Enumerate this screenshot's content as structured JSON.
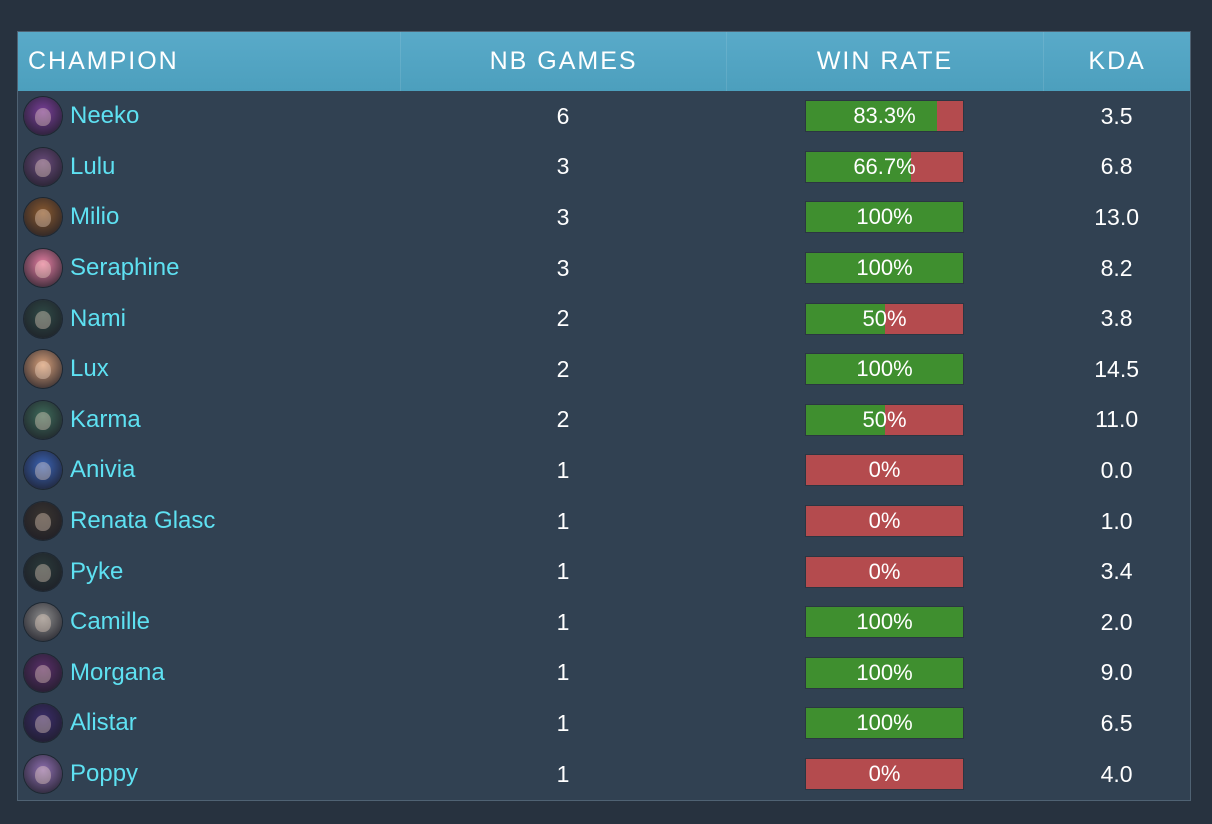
{
  "colors": {
    "background": "#27323f",
    "panel": "#314152",
    "header": "#54a5c4",
    "champion_link": "#5ee1f2",
    "win": "#3f8f2f",
    "loss": "#b44b4e"
  },
  "table": {
    "headers": {
      "champion": "CHAMPION",
      "games": "NB GAMES",
      "win_rate": "WIN RATE",
      "kda": "KDA"
    },
    "rows": [
      {
        "champion": "Neeko",
        "games": "6",
        "win_rate": "83.3%",
        "win_fraction": 0.833,
        "kda": "3.5",
        "icon": "neeko-portrait-icon",
        "avatar_color": "#7a3f9a"
      },
      {
        "champion": "Lulu",
        "games": "3",
        "win_rate": "66.7%",
        "win_fraction": 0.667,
        "kda": "6.8",
        "icon": "lulu-portrait-icon",
        "avatar_color": "#6a4b7c"
      },
      {
        "champion": "Milio",
        "games": "3",
        "win_rate": "100%",
        "win_fraction": 1.0,
        "kda": "13.0",
        "icon": "milio-portrait-icon",
        "avatar_color": "#8a5a30"
      },
      {
        "champion": "Seraphine",
        "games": "3",
        "win_rate": "100%",
        "win_fraction": 1.0,
        "kda": "8.2",
        "icon": "seraphine-portrait-icon",
        "avatar_color": "#e67fa3"
      },
      {
        "champion": "Nami",
        "games": "2",
        "win_rate": "50%",
        "win_fraction": 0.5,
        "kda": "3.8",
        "icon": "nami-portrait-icon",
        "avatar_color": "#2f4a46"
      },
      {
        "champion": "Lux",
        "games": "2",
        "win_rate": "100%",
        "win_fraction": 1.0,
        "kda": "14.5",
        "icon": "lux-portrait-icon",
        "avatar_color": "#d7a07a"
      },
      {
        "champion": "Karma",
        "games": "2",
        "win_rate": "50%",
        "win_fraction": 0.5,
        "kda": "11.0",
        "icon": "karma-portrait-icon",
        "avatar_color": "#3e6b5a"
      },
      {
        "champion": "Anivia",
        "games": "1",
        "win_rate": "0%",
        "win_fraction": 0.0,
        "kda": "0.0",
        "icon": "anivia-portrait-icon",
        "avatar_color": "#3a63b5"
      },
      {
        "champion": "Renata Glasc",
        "games": "1",
        "win_rate": "0%",
        "win_fraction": 0.0,
        "kda": "1.0",
        "icon": "renata-glasc-portrait-icon",
        "avatar_color": "#3a3530"
      },
      {
        "champion": "Pyke",
        "games": "1",
        "win_rate": "0%",
        "win_fraction": 0.0,
        "kda": "3.4",
        "icon": "pyke-portrait-icon",
        "avatar_color": "#2a3a3a"
      },
      {
        "champion": "Camille",
        "games": "1",
        "win_rate": "100%",
        "win_fraction": 1.0,
        "kda": "2.0",
        "icon": "camille-portrait-icon",
        "avatar_color": "#8c8c8c"
      },
      {
        "champion": "Morgana",
        "games": "1",
        "win_rate": "100%",
        "win_fraction": 1.0,
        "kda": "9.0",
        "icon": "morgana-portrait-icon",
        "avatar_color": "#5a2f6a"
      },
      {
        "champion": "Alistar",
        "games": "1",
        "win_rate": "100%",
        "win_fraction": 1.0,
        "kda": "6.5",
        "icon": "alistar-portrait-icon",
        "avatar_color": "#3b2d6b"
      },
      {
        "champion": "Poppy",
        "games": "1",
        "win_rate": "0%",
        "win_fraction": 0.0,
        "kda": "4.0",
        "icon": "poppy-portrait-icon",
        "avatar_color": "#8e6fb0"
      }
    ]
  }
}
